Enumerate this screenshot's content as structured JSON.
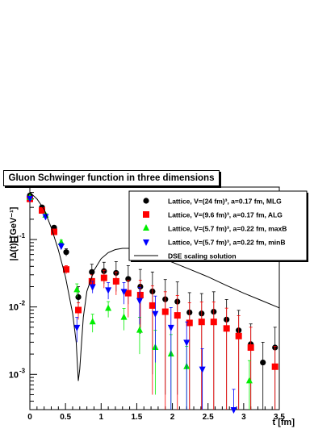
{
  "chart_data": {
    "type": "scatter",
    "title": "Gluon Schwinger function in three dimensions",
    "xlabel": "t [fm]",
    "ylabel": "|Δ(t)| [GeV⁻¹]",
    "xlim": [
      0,
      3.5
    ],
    "ylim": [
      0.0003,
      0.6
    ],
    "yscale": "log",
    "x_ticks": [
      "0",
      "0.5",
      "1",
      "1.5",
      "2",
      "2.5",
      "3",
      "3.5"
    ],
    "y_ticks": [
      {
        "base": "10",
        "exp": "-3",
        "value": 0.001
      },
      {
        "base": "10",
        "exp": "-2",
        "value": 0.01
      },
      {
        "base": "10",
        "exp": "-1",
        "value": 0.1
      }
    ],
    "legend_position": "top-right",
    "series": [
      {
        "name": "Lattice, V=(24 fm)³, a=0.17 fm, MLG",
        "marker": "circle",
        "color": "#000000",
        "points": [
          {
            "x": 0.0,
            "y": 0.45
          },
          {
            "x": 0.17,
            "y": 0.3,
            "err": 0.02
          },
          {
            "x": 0.34,
            "y": 0.15,
            "err": 0.01
          },
          {
            "x": 0.51,
            "y": 0.065,
            "err": 0.008
          },
          {
            "x": 0.68,
            "y": 0.014,
            "err": 0.006
          },
          {
            "x": 0.87,
            "y": 0.033,
            "err": 0.01
          },
          {
            "x": 1.04,
            "y": 0.034,
            "err": 0.012
          },
          {
            "x": 1.21,
            "y": 0.032,
            "err": 0.015
          },
          {
            "x": 1.38,
            "y": 0.026,
            "err": 0.015
          },
          {
            "x": 1.55,
            "y": 0.02,
            "err": 0.016
          },
          {
            "x": 1.72,
            "y": 0.017,
            "err": 0.016
          },
          {
            "x": 1.9,
            "y": 0.013,
            "err": 0.0125
          },
          {
            "x": 2.07,
            "y": 0.012,
            "err": 0.0115
          },
          {
            "x": 2.24,
            "y": 0.0083,
            "err": 0.008
          },
          {
            "x": 2.41,
            "y": 0.008,
            "err": 0.0078
          },
          {
            "x": 2.58,
            "y": 0.0085,
            "err": 0.0083
          },
          {
            "x": 2.76,
            "y": 0.0065,
            "err": 0.0064
          },
          {
            "x": 2.93,
            "y": 0.0045,
            "err": 0.0044
          },
          {
            "x": 3.1,
            "y": 0.0028,
            "err": 0.0028
          },
          {
            "x": 3.27,
            "y": 0.0015,
            "err": 0.0015
          },
          {
            "x": 3.44,
            "y": 0.0025,
            "err": 0.0025
          }
        ]
      },
      {
        "name": "Lattice, V=(9.6 fm)³, a=0.17 fm, ALG",
        "marker": "square",
        "color": "#ff0000",
        "points": [
          {
            "x": 0.0,
            "y": 0.4
          },
          {
            "x": 0.17,
            "y": 0.27,
            "err": 0.02
          },
          {
            "x": 0.34,
            "y": 0.13,
            "err": 0.01
          },
          {
            "x": 0.51,
            "y": 0.036,
            "err": 0.005
          },
          {
            "x": 0.68,
            "y": 0.009,
            "err": 0.0025
          },
          {
            "x": 0.87,
            "y": 0.024,
            "err": 0.006
          },
          {
            "x": 1.04,
            "y": 0.027,
            "err": 0.008
          },
          {
            "x": 1.21,
            "y": 0.024,
            "err": 0.009
          },
          {
            "x": 1.38,
            "y": 0.016,
            "err": 0.009
          },
          {
            "x": 1.55,
            "y": 0.015,
            "err": 0.01
          },
          {
            "x": 1.72,
            "y": 0.0105,
            "err": 0.01
          },
          {
            "x": 1.9,
            "y": 0.0085,
            "err": 0.0083
          },
          {
            "x": 2.07,
            "y": 0.0075,
            "err": 0.0073
          },
          {
            "x": 2.24,
            "y": 0.0058,
            "err": 0.0057
          },
          {
            "x": 2.41,
            "y": 0.006,
            "err": 0.0059
          },
          {
            "x": 2.58,
            "y": 0.006,
            "err": 0.0059
          },
          {
            "x": 2.76,
            "y": 0.0048,
            "err": 0.0048
          },
          {
            "x": 2.93,
            "y": 0.0037,
            "err": 0.0037
          },
          {
            "x": 3.1,
            "y": 0.0025,
            "err": 0.0025
          },
          {
            "x": 3.44,
            "y": 0.0013,
            "err": 0.0013
          }
        ]
      },
      {
        "name": "Lattice, V=(5.7 fm)³, a=0.22 fm, maxB",
        "marker": "triangle-up",
        "color": "#00ee00",
        "points": [
          {
            "x": 0.0,
            "y": 0.42
          },
          {
            "x": 0.22,
            "y": 0.23,
            "err": 0.015
          },
          {
            "x": 0.44,
            "y": 0.09,
            "err": 0.008
          },
          {
            "x": 0.66,
            "y": 0.018,
            "err": 0.004
          },
          {
            "x": 0.88,
            "y": 0.006,
            "err": 0.0018
          },
          {
            "x": 1.1,
            "y": 0.0095,
            "err": 0.0025
          },
          {
            "x": 1.32,
            "y": 0.007,
            "err": 0.0025
          },
          {
            "x": 1.54,
            "y": 0.0045,
            "err": 0.0025
          },
          {
            "x": 1.76,
            "y": 0.0025,
            "err": 0.002
          },
          {
            "x": 1.98,
            "y": 0.002,
            "err": 0.0019
          },
          {
            "x": 2.2,
            "y": 0.0013,
            "err": 0.0013
          },
          {
            "x": 3.08,
            "y": 0.0008,
            "err": 0.0008
          }
        ]
      },
      {
        "name": "Lattice, V=(5.7 fm)³, a=0.22 fm, minB",
        "marker": "triangle-down",
        "color": "#0000ff",
        "points": [
          {
            "x": 0.0,
            "y": 0.41
          },
          {
            "x": 0.22,
            "y": 0.22,
            "err": 0.015
          },
          {
            "x": 0.44,
            "y": 0.08,
            "err": 0.008
          },
          {
            "x": 0.66,
            "y": 0.005,
            "err": 0.002
          },
          {
            "x": 0.88,
            "y": 0.02,
            "err": 0.004
          },
          {
            "x": 1.1,
            "y": 0.018,
            "err": 0.005
          },
          {
            "x": 1.32,
            "y": 0.017,
            "err": 0.006
          },
          {
            "x": 1.54,
            "y": 0.0125,
            "err": 0.007
          },
          {
            "x": 1.76,
            "y": 0.008,
            "err": 0.0065
          },
          {
            "x": 1.98,
            "y": 0.005,
            "err": 0.0048
          },
          {
            "x": 2.2,
            "y": 0.003,
            "err": 0.003
          },
          {
            "x": 2.42,
            "y": 0.0012,
            "err": 0.0012
          },
          {
            "x": 2.86,
            "y": 0.0003,
            "err": 0.0003
          }
        ]
      },
      {
        "name": "DSE scaling solution",
        "marker": "line",
        "color": "#000000",
        "points": [
          {
            "x": 0.0,
            "y": 0.5
          },
          {
            "x": 0.1,
            "y": 0.4
          },
          {
            "x": 0.2,
            "y": 0.28
          },
          {
            "x": 0.3,
            "y": 0.15
          },
          {
            "x": 0.4,
            "y": 0.07
          },
          {
            "x": 0.5,
            "y": 0.028
          },
          {
            "x": 0.6,
            "y": 0.008
          },
          {
            "x": 0.65,
            "y": 0.003
          },
          {
            "x": 0.68,
            "y": 0.0008
          },
          {
            "x": 0.7,
            "y": 0.0012
          },
          {
            "x": 0.75,
            "y": 0.007
          },
          {
            "x": 0.8,
            "y": 0.017
          },
          {
            "x": 0.9,
            "y": 0.035
          },
          {
            "x": 1.0,
            "y": 0.052
          },
          {
            "x": 1.1,
            "y": 0.064
          },
          {
            "x": 1.2,
            "y": 0.071
          },
          {
            "x": 1.3,
            "y": 0.074
          },
          {
            "x": 1.4,
            "y": 0.074
          },
          {
            "x": 1.5,
            "y": 0.071
          },
          {
            "x": 1.75,
            "y": 0.058
          },
          {
            "x": 2.0,
            "y": 0.046
          },
          {
            "x": 2.25,
            "y": 0.036
          },
          {
            "x": 2.5,
            "y": 0.028
          },
          {
            "x": 2.75,
            "y": 0.021
          },
          {
            "x": 3.0,
            "y": 0.016
          },
          {
            "x": 3.25,
            "y": 0.0125
          },
          {
            "x": 3.5,
            "y": 0.0097
          }
        ]
      }
    ]
  }
}
